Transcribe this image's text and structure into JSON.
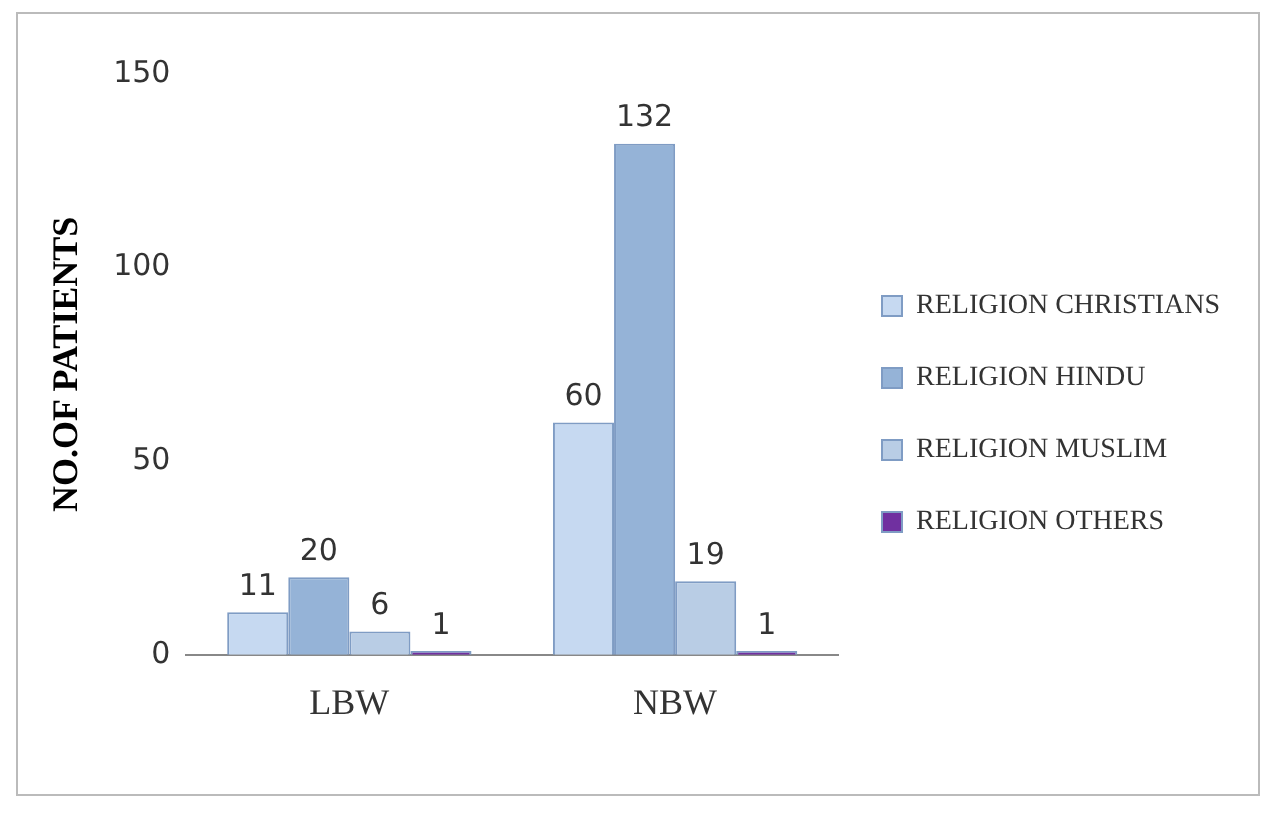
{
  "chart_data": {
    "type": "bar",
    "ylabel": "NO.OF PATIENTS",
    "categories": [
      "LBW",
      "NBW"
    ],
    "series": [
      {
        "name": "RELIGION CHRISTIANS",
        "color": "#c6d9f1",
        "values": [
          11,
          60
        ]
      },
      {
        "name": "RELIGION HINDU",
        "color": "#95b3d7",
        "values": [
          20,
          132
        ]
      },
      {
        "name": "RELIGION MUSLIM",
        "color": "#b9cde5",
        "values": [
          6,
          19
        ]
      },
      {
        "name": "RELIGION OTHERS",
        "color": "#7030a0",
        "values": [
          1,
          1
        ]
      }
    ],
    "ylim": [
      0,
      150
    ],
    "yticks": [
      0,
      50,
      100,
      150
    ],
    "grid": false,
    "legend": "right",
    "data_labels": true
  }
}
